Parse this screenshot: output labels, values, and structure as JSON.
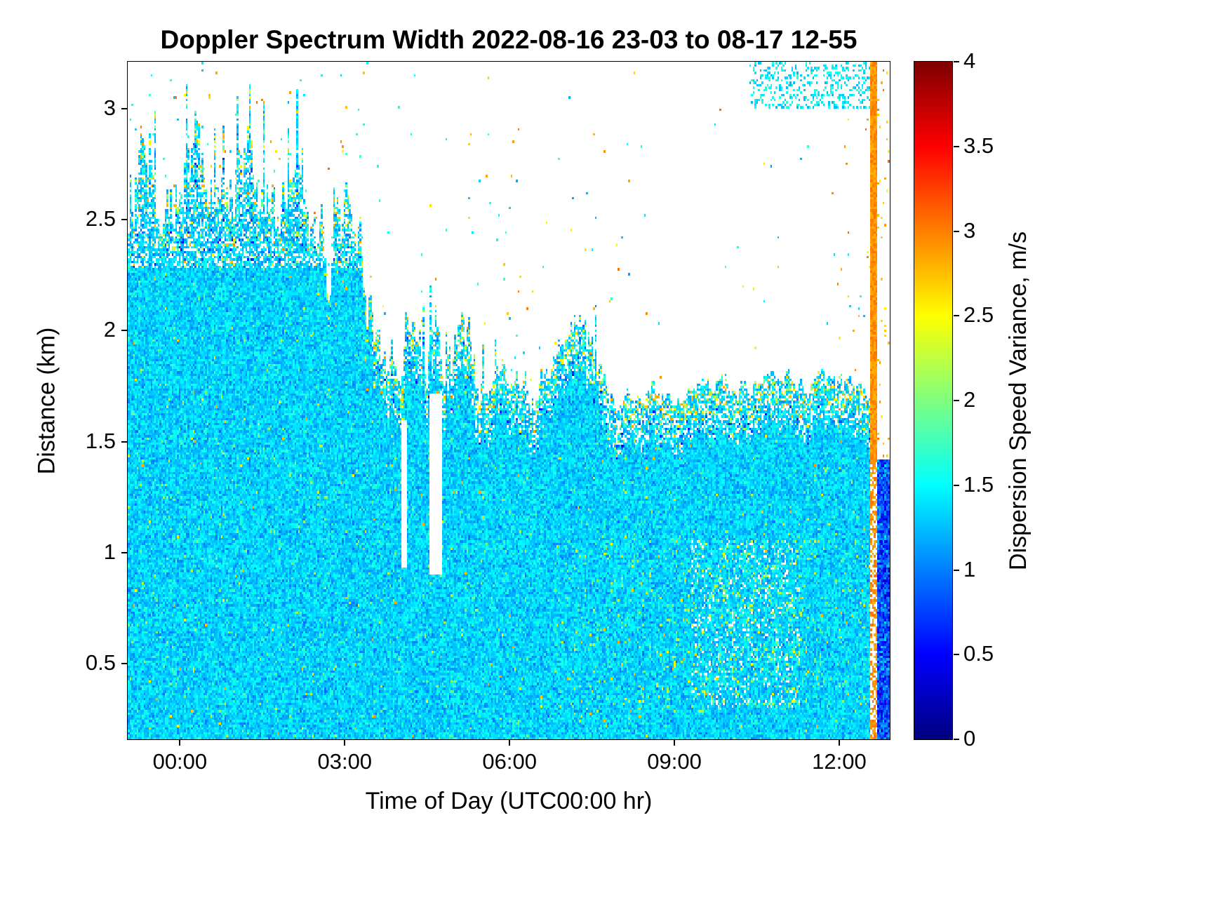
{
  "chart_data": {
    "type": "heatmap",
    "title": "Doppler Spectrum Width 2022-08-16 23-03 to 08-17 12-55",
    "xlabel": "Time of Day (UTC00:00 hr)",
    "ylabel": "Distance (km)",
    "colorbar_label": "Dispersion Speed Variance, m/s",
    "colormap": "jet",
    "x_range_hours": [
      -0.95,
      12.92
    ],
    "y_range_km": [
      0.16,
      3.21
    ],
    "color_range": [
      0,
      4
    ],
    "x_ticks": [
      {
        "hour": 0,
        "label": "00:00"
      },
      {
        "hour": 3,
        "label": "03:00"
      },
      {
        "hour": 6,
        "label": "06:00"
      },
      {
        "hour": 9,
        "label": "09:00"
      },
      {
        "hour": 12,
        "label": "12:00"
      }
    ],
    "y_ticks": [
      {
        "km": 0.5,
        "label": "0.5"
      },
      {
        "km": 1,
        "label": "1"
      },
      {
        "km": 1.5,
        "label": "1.5"
      },
      {
        "km": 2,
        "label": "2"
      },
      {
        "km": 2.5,
        "label": "2.5"
      },
      {
        "km": 3,
        "label": "3"
      }
    ],
    "colorbar_ticks": [
      {
        "value": 0,
        "label": "0"
      },
      {
        "value": 0.5,
        "label": "0.5"
      },
      {
        "value": 1,
        "label": "1"
      },
      {
        "value": 1.5,
        "label": "1.5"
      },
      {
        "value": 2,
        "label": "2"
      },
      {
        "value": 2.5,
        "label": "2.5"
      },
      {
        "value": 3,
        "label": "3"
      },
      {
        "value": 3.5,
        "label": "3.5"
      },
      {
        "value": 4,
        "label": "4"
      }
    ],
    "grid": {
      "nx": 434,
      "ny": 276,
      "seed": 1234
    },
    "field": {
      "background_mean_mps": 1.33,
      "background_sd_mps": 0.16,
      "echo_top_keypoints": [
        [
          -0.95,
          2.55
        ],
        [
          -0.6,
          2.75
        ],
        [
          -0.3,
          2.45
        ],
        [
          0,
          2.6
        ],
        [
          0.3,
          2.85
        ],
        [
          0.6,
          2.7
        ],
        [
          0.9,
          2.6
        ],
        [
          1.2,
          2.75
        ],
        [
          1.5,
          2.55
        ],
        [
          1.8,
          2.45
        ],
        [
          2.1,
          2.65
        ],
        [
          2.4,
          2.55
        ],
        [
          2.7,
          2.3
        ],
        [
          3,
          2.5
        ],
        [
          3.3,
          2.3
        ],
        [
          3.6,
          2
        ],
        [
          3.8,
          1.85
        ],
        [
          4,
          1.95
        ],
        [
          4.2,
          2.05
        ],
        [
          4.5,
          1.9
        ],
        [
          4.7,
          2.15
        ],
        [
          4.9,
          1.85
        ],
        [
          5.2,
          1.95
        ],
        [
          5.5,
          1.75
        ],
        [
          5.8,
          1.85
        ],
        [
          6.1,
          1.8
        ],
        [
          6.4,
          1.72
        ],
        [
          6.7,
          1.85
        ],
        [
          7,
          2
        ],
        [
          7.3,
          2.05
        ],
        [
          7.6,
          1.85
        ],
        [
          7.9,
          1.72
        ],
        [
          8.2,
          1.7
        ],
        [
          8.6,
          1.74
        ],
        [
          9,
          1.7
        ],
        [
          9.4,
          1.74
        ],
        [
          9.8,
          1.78
        ],
        [
          10.2,
          1.73
        ],
        [
          10.6,
          1.77
        ],
        [
          11,
          1.8
        ],
        [
          11.4,
          1.74
        ],
        [
          11.8,
          1.78
        ],
        [
          12.2,
          1.74
        ],
        [
          12.6,
          1.72
        ],
        [
          12.92,
          1.7
        ]
      ],
      "features": {
        "streaky_band": {
          "solid_top_left_km": 2.28,
          "band_depth_km": 0.22,
          "gap_probability": 0.28
        },
        "white_gap_columns": [
          {
            "t": [
              4.02,
              4.14
            ],
            "z": [
              0.93,
              1.6
            ]
          },
          {
            "t": [
              4.55,
              4.76
            ],
            "z": [
              0.9,
              1.72
            ]
          }
        ],
        "orange_stripe": {
          "t": [
            12.58,
            12.7
          ],
          "value_mps": 2.9
        },
        "right_edge_block": {
          "t_start": 12.7,
          "z_split_km": 1.42,
          "low_mean_mps": 0.85
        },
        "top_right_band": {
          "t_start": 10.35,
          "z_start_km": 3.0,
          "density": 0.3
        },
        "noisy_zone": {
          "t": [
            9.3,
            11.3
          ],
          "z": [
            0.3,
            1.05
          ]
        },
        "green_speckle_zone": {
          "t": [
            6.8,
            12.5
          ],
          "z": [
            0.28,
            1.1
          ]
        }
      }
    }
  }
}
